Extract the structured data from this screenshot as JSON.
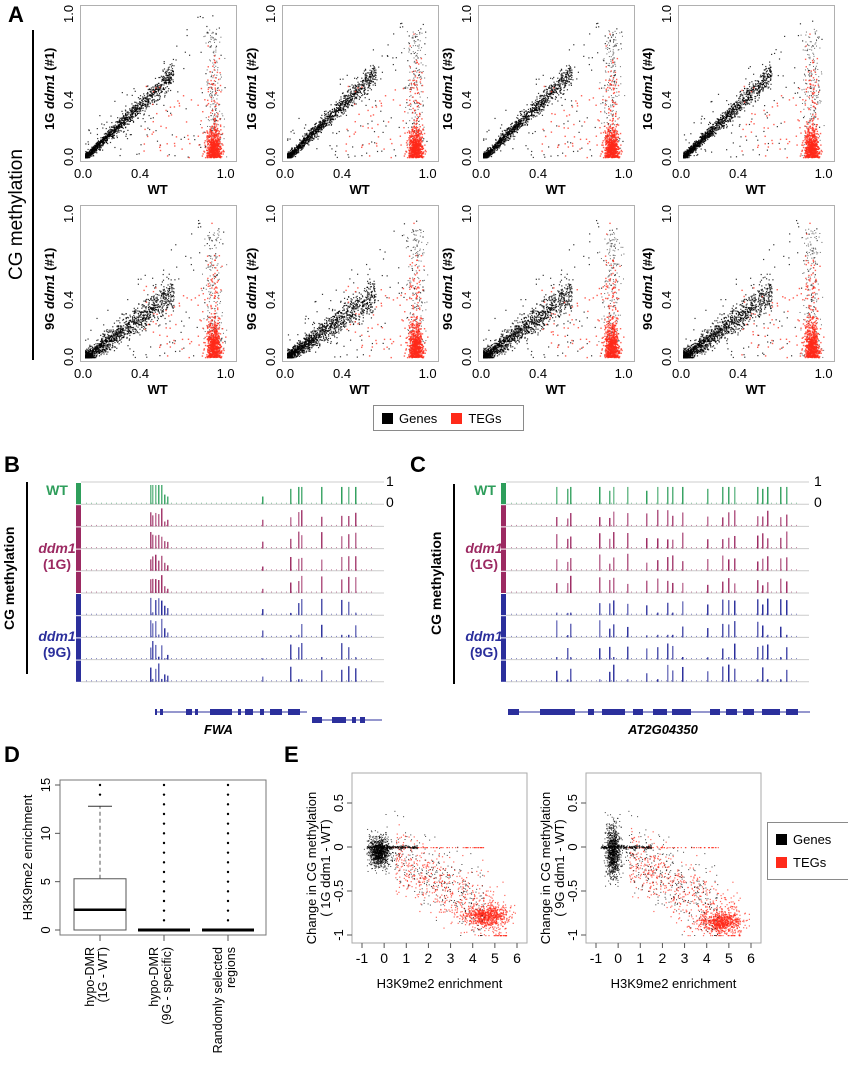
{
  "figure": {
    "panels": [
      "A",
      "B",
      "C",
      "D",
      "E"
    ],
    "colors": {
      "genes": "#000000",
      "tegs": "#ff2a1a",
      "wt_track": "#2e9e5b",
      "ddm1_1g_track": "#9c2a62",
      "ddm1_9g_track": "#2b2f9c",
      "gene_model": "#2b2f9c",
      "frame": "#b0b0b0"
    }
  },
  "panelA": {
    "side_label": "CG methylation",
    "xlabel": "WT",
    "legend": [
      {
        "label": "Genes",
        "color": "#000000"
      },
      {
        "label": "TEGs",
        "color": "#ff2a1a"
      }
    ],
    "x_ticks": [
      "0.0",
      "0.4",
      "1.0"
    ],
    "y_ticks": [
      "0.0",
      "0.4",
      "1.0"
    ],
    "plots": [
      {
        "ylabel_prefix": "1G ",
        "ylabel_gene": "ddm1",
        "ylabel_suffix": " (#1)"
      },
      {
        "ylabel_prefix": "1G ",
        "ylabel_gene": "ddm1",
        "ylabel_suffix": " (#2)"
      },
      {
        "ylabel_prefix": "1G ",
        "ylabel_gene": "ddm1",
        "ylabel_suffix": " (#3)"
      },
      {
        "ylabel_prefix": "1G ",
        "ylabel_gene": "ddm1",
        "ylabel_suffix": " (#4)"
      },
      {
        "ylabel_prefix": "9G ",
        "ylabel_gene": "ddm1",
        "ylabel_suffix": " (#1)"
      },
      {
        "ylabel_prefix": "9G ",
        "ylabel_gene": "ddm1",
        "ylabel_suffix": " (#2)"
      },
      {
        "ylabel_prefix": "9G ",
        "ylabel_gene": "ddm1",
        "ylabel_suffix": " (#3)"
      },
      {
        "ylabel_prefix": "9G ",
        "ylabel_gene": "ddm1",
        "ylabel_suffix": " (#4)"
      }
    ]
  },
  "panelB": {
    "side_label": "CG methylation",
    "scale_top": "1",
    "scale_bottom": "0",
    "wt_label": "WT",
    "g1_label": "ddm1",
    "g1_sub": "(1G)",
    "g9_label": "ddm1",
    "g9_sub": "(9G)",
    "gene": "FWA"
  },
  "panelC": {
    "side_label": "CG methylation",
    "scale_top": "1",
    "scale_bottom": "0",
    "wt_label": "WT",
    "g1_label": "ddm1",
    "g1_sub": "(1G)",
    "g9_label": "ddm1",
    "g9_sub": "(9G)",
    "gene": "AT2G04350"
  },
  "panelE": {
    "xlabel": "H3K9me2 enrichment",
    "left_ylabel_line1": "Change in CG methylation",
    "left_ylabel_line2": "( 1G  ddm1 - WT)",
    "right_ylabel_line1": "Change in CG methylation",
    "right_ylabel_line2": "( 9G  ddm1 - WT)",
    "legend": [
      {
        "label": "Genes",
        "color": "#000000"
      },
      {
        "label": "TEGs",
        "color": "#ff2a1a"
      }
    ]
  },
  "chart_data": [
    {
      "id": "A",
      "type": "scatter",
      "title": "",
      "xlabel": "WT",
      "ylabel": "ddm1 CG methylation (1G #1-#4, 9G #1-#4)",
      "xlim": [
        0,
        1
      ],
      "ylim": [
        0,
        1
      ],
      "x_ticks": [
        0.0,
        0.4,
        1.0
      ],
      "y_ticks": [
        0.0,
        0.4,
        1.0
      ],
      "legend": [
        "Genes",
        "TEGs"
      ],
      "legend_position": "bottom-center",
      "series": [
        {
          "name": "Genes",
          "description": "1G: tight diagonal y≈x for WT 0–0.6; 9G: broader cloud y≈0.7x, WT 0–0.6"
        },
        {
          "name": "TEGs",
          "description": "cluster at WT≈0.85–0.95, ddm1≈0.0–0.4 (1G) and 0.0–0.45 (9G)"
        }
      ]
    },
    {
      "id": "D",
      "type": "box",
      "ylabel": "H3K9me2 enrichment",
      "ylim": [
        0,
        15
      ],
      "y_ticks": [
        0,
        5,
        10,
        15
      ],
      "categories": [
        "hypo-DMR\n(1G - WT)",
        "hypo-DMR\n(9G - specific)",
        "Randomly selected\nregions"
      ],
      "boxes": [
        {
          "name": "hypo-DMR (1G - WT)",
          "min": 0,
          "q1": 0,
          "median": 2.1,
          "q3": 5.3,
          "max": 12.8,
          "outliers": [
            14,
            15
          ]
        },
        {
          "name": "hypo-DMR (9G - specific)",
          "min": 0,
          "q1": 0,
          "median": 0,
          "q3": 0,
          "max": 0,
          "outliers": [
            1,
            2,
            3,
            4,
            5,
            6,
            7,
            8,
            9,
            10,
            11,
            12,
            13,
            14,
            15
          ]
        },
        {
          "name": "Randomly selected regions",
          "min": 0,
          "q1": 0,
          "median": 0,
          "q3": 0,
          "max": 0,
          "outliers": [
            1,
            2,
            3,
            4,
            5,
            6,
            7,
            8,
            9,
            10,
            11,
            12,
            13,
            14,
            15
          ]
        }
      ]
    },
    {
      "id": "E-left",
      "type": "scatter",
      "xlabel": "H3K9me2 enrichment",
      "ylabel": "Change in CG methylation ( 1G ddm1 - WT)",
      "xlim": [
        -1.3,
        6.3
      ],
      "ylim": [
        -1.05,
        0.75
      ],
      "x_ticks": [
        -1,
        0,
        1,
        2,
        3,
        4,
        5,
        6
      ],
      "y_ticks": [
        -1.0,
        -0.5,
        0,
        0.5
      ],
      "series": [
        {
          "name": "Genes",
          "description": "dense cluster at x≈-0.5–0.5, y≈-0.3–0.1; horizontal band at y=0 to x≈1.5"
        },
        {
          "name": "TEGs",
          "description": "diagonal descent to dense cluster at x≈4–5.5, y≈-0.7 to -0.85"
        }
      ]
    },
    {
      "id": "E-right",
      "type": "scatter",
      "xlabel": "H3K9me2 enrichment",
      "ylabel": "Change in CG methylation ( 9G ddm1 - WT)",
      "xlim": [
        -1.3,
        6.3
      ],
      "ylim": [
        -1.05,
        0.75
      ],
      "x_ticks": [
        -1,
        0,
        1,
        2,
        3,
        4,
        5,
        6
      ],
      "y_ticks": [
        -1.0,
        -0.5,
        0,
        0.5
      ],
      "legend": [
        "Genes",
        "TEGs"
      ],
      "legend_position": "right",
      "series": [
        {
          "name": "Genes",
          "description": "tall cluster at x≈-0.5–0, y≈-0.45–0.3; band at y=0 to x≈1.5"
        },
        {
          "name": "TEGs",
          "description": "dense cluster at x≈4–5.5, y≈-0.8 to -0.95"
        }
      ]
    }
  ]
}
